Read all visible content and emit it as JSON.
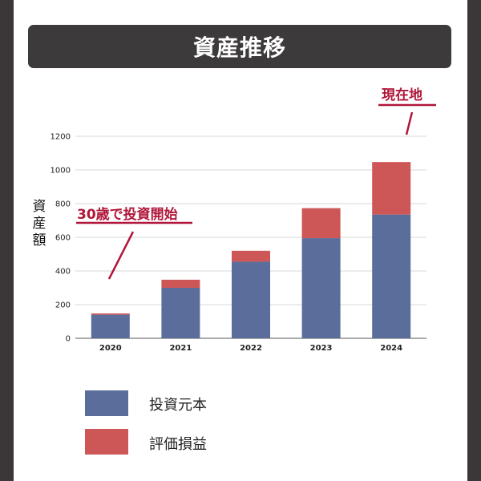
{
  "title": "資産推移",
  "colors": {
    "principal": "#5b6e9b",
    "gain": "#cd5757",
    "accent": "#b0173a"
  },
  "chart_data": {
    "type": "bar",
    "stacked": true,
    "categories": [
      "2020",
      "2021",
      "2022",
      "2023",
      "2024"
    ],
    "series": [
      {
        "name": "投資元本",
        "values": [
          140,
          300,
          455,
          595,
          735
        ]
      },
      {
        "name": "評価損益",
        "values": [
          8,
          48,
          65,
          178,
          312
        ]
      }
    ],
    "ylabel": "資産額",
    "ylim": [
      0,
      1200
    ],
    "yticks": [
      0,
      200,
      400,
      600,
      800,
      1000,
      1200
    ],
    "grid": true,
    "legend": "bottom",
    "annotations": [
      {
        "text": "30歳で投資開始",
        "target": "2020"
      },
      {
        "text": "現在地",
        "target": "2024"
      }
    ]
  }
}
